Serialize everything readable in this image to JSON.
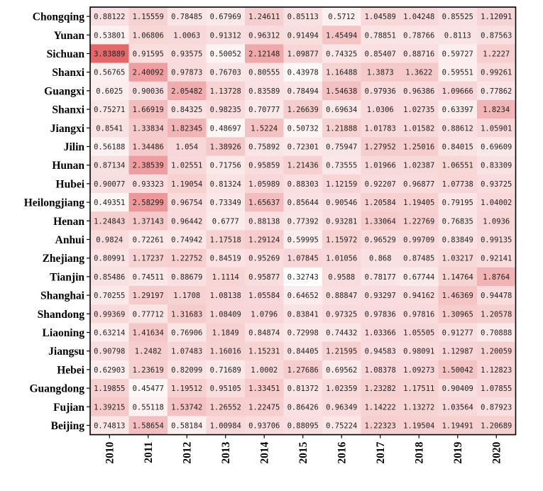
{
  "chart_data": {
    "type": "heatmap",
    "title": "",
    "xlabel": "",
    "ylabel": "",
    "x": [
      "2010",
      "2011",
      "2012",
      "2013",
      "2014",
      "2015",
      "2016",
      "2017",
      "2018",
      "2019",
      "2020"
    ],
    "y": [
      "Chongqing",
      "Yunan",
      "Sichuan",
      "Shanxi",
      "Guangxi",
      "Shanxi",
      "Jiangxi",
      "Jilin",
      "Hunan",
      "Hubei",
      "Heilongjiang",
      "Henan",
      "Anhui",
      "Zhejiang",
      "Tianjin",
      "Shanghai",
      "Shandong",
      "Liaoning",
      "Jiangsu",
      "Hebei",
      "Guangdong",
      "Fujian",
      "Beijing"
    ],
    "values": [
      [
        "0.88122",
        "1.15559",
        "0.78485",
        "0.67969",
        "1.24611",
        "0.85113",
        "0.5712",
        "1.04589",
        "1.04248",
        "0.85525",
        "1.12091"
      ],
      [
        "0.53801",
        "1.06806",
        "1.0063",
        "0.91312",
        "0.96312",
        "0.91494",
        "1.45494",
        "0.78851",
        "0.78766",
        "0.8113",
        "0.87563"
      ],
      [
        "3.83889",
        "0.91595",
        "0.93575",
        "0.50052",
        "2.12148",
        "1.09877",
        "0.74325",
        "0.85407",
        "0.88716",
        "0.59727",
        "1.2227"
      ],
      [
        "0.56765",
        "2.40092",
        "0.97873",
        "0.76703",
        "0.80555",
        "0.43978",
        "1.16488",
        "1.3873",
        "1.3622",
        "0.59551",
        "0.99261"
      ],
      [
        "0.6025",
        "0.90036",
        "2.05482",
        "1.13728",
        "0.83589",
        "0.78494",
        "1.54638",
        "0.97936",
        "0.96386",
        "1.09666",
        "0.77862"
      ],
      [
        "0.75271",
        "1.66919",
        "0.84325",
        "0.98235",
        "0.70777",
        "1.26639",
        "0.69634",
        "1.0306",
        "1.02735",
        "0.63397",
        "1.8234"
      ],
      [
        "0.8541",
        "1.33834",
        "1.82345",
        "0.48697",
        "1.5224",
        "0.50732",
        "1.21888",
        "1.01783",
        "1.01582",
        "0.88612",
        "1.05901"
      ],
      [
        "0.56188",
        "1.34486",
        "1.054",
        "1.38926",
        "0.75892",
        "0.72301",
        "0.75947",
        "1.27952",
        "1.25016",
        "0.84015",
        "0.69609"
      ],
      [
        "0.87134",
        "2.38539",
        "1.02551",
        "0.71756",
        "0.95859",
        "1.21436",
        "0.73555",
        "1.01966",
        "1.02387",
        "1.06551",
        "0.83309"
      ],
      [
        "0.90077",
        "0.93323",
        "1.19054",
        "0.81324",
        "1.05989",
        "0.88303",
        "1.12159",
        "0.92207",
        "0.96877",
        "1.07738",
        "0.93725"
      ],
      [
        "0.49351",
        "2.58299",
        "0.96754",
        "0.73349",
        "1.65637",
        "0.85644",
        "0.90546",
        "1.20584",
        "1.19405",
        "0.79195",
        "1.04002"
      ],
      [
        "1.24843",
        "1.37143",
        "0.96442",
        "0.6777",
        "0.88138",
        "0.77392",
        "0.93281",
        "1.33064",
        "1.22769",
        "0.76835",
        "1.0936"
      ],
      [
        "0.9824",
        "0.72261",
        "0.74942",
        "1.17518",
        "1.29124",
        "0.59995",
        "1.15972",
        "0.96529",
        "0.99709",
        "0.83849",
        "0.99135"
      ],
      [
        "0.80991",
        "1.17237",
        "1.22752",
        "0.84519",
        "0.95269",
        "1.07845",
        "1.01056",
        "0.868",
        "0.87485",
        "1.03217",
        "0.92141"
      ],
      [
        "0.85486",
        "0.74511",
        "0.88679",
        "1.1114",
        "0.95877",
        "0.32743",
        "0.9588",
        "0.78177",
        "0.67744",
        "1.14764",
        "1.8764"
      ],
      [
        "0.70255",
        "1.29197",
        "1.1708",
        "1.08138",
        "1.05584",
        "0.64652",
        "0.88847",
        "0.93297",
        "0.94162",
        "1.46369",
        "0.94478"
      ],
      [
        "0.99369",
        "0.77712",
        "1.31683",
        "1.08409",
        "1.0796",
        "0.83841",
        "0.97325",
        "0.97836",
        "0.97816",
        "1.30965",
        "1.20578"
      ],
      [
        "0.63214",
        "1.41634",
        "0.76906",
        "1.1849",
        "0.84874",
        "0.72998",
        "0.74432",
        "1.03366",
        "1.05505",
        "0.91277",
        "0.70888"
      ],
      [
        "0.90798",
        "1.2482",
        "1.07483",
        "1.16016",
        "1.15231",
        "0.84405",
        "1.21595",
        "0.94583",
        "0.98091",
        "1.12987",
        "1.20059"
      ],
      [
        "0.62903",
        "1.23619",
        "0.82099",
        "0.71689",
        "1.0002",
        "1.27686",
        "0.69562",
        "1.08378",
        "1.09273",
        "1.50042",
        "1.12823"
      ],
      [
        "1.19855",
        "0.45477",
        "1.19512",
        "0.95105",
        "1.33451",
        "0.81372",
        "1.02359",
        "1.23282",
        "1.17511",
        "0.90409",
        "1.07855"
      ],
      [
        "1.39215",
        "0.55118",
        "1.53742",
        "1.26552",
        "1.22475",
        "0.86426",
        "0.96349",
        "1.14222",
        "1.13272",
        "1.03564",
        "0.87923"
      ],
      [
        "0.74813",
        "1.58654",
        "0.58184",
        "1.00984",
        "0.93706",
        "0.88095",
        "0.75224",
        "1.22323",
        "1.19504",
        "1.19491",
        "1.20689"
      ]
    ],
    "colors": {
      "low": "#ffffff",
      "high": "#e4676a",
      "text": "#222222",
      "border": "#000000"
    },
    "grid": false,
    "legend": "none"
  }
}
